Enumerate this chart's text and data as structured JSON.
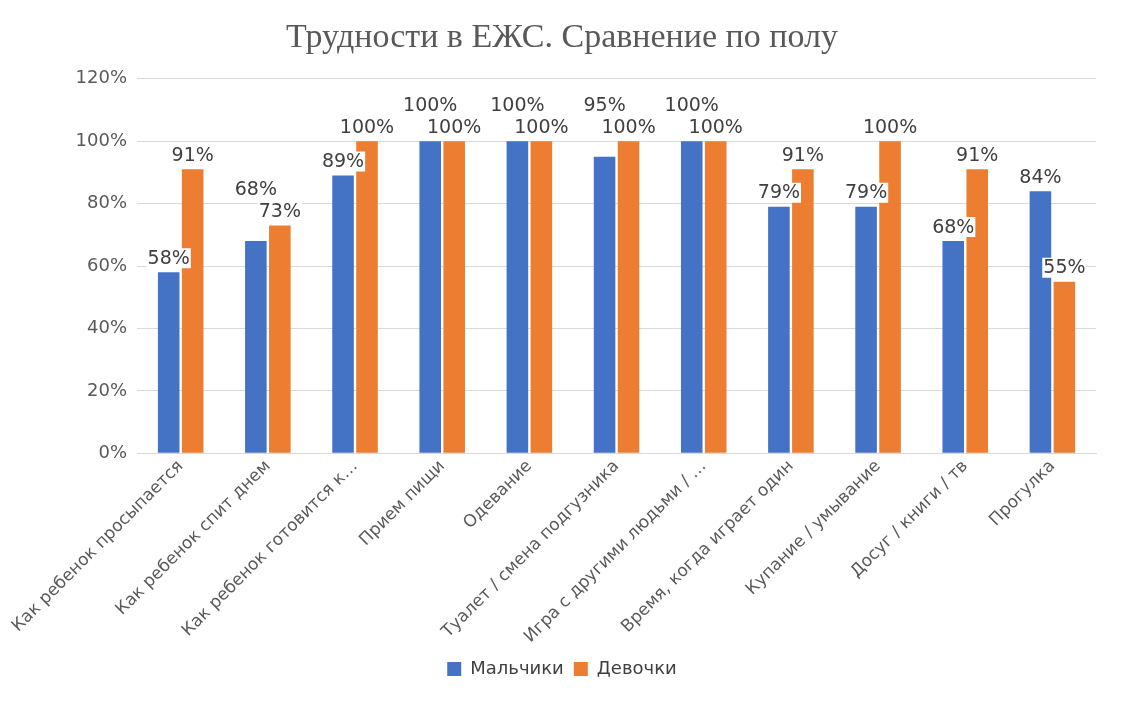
{
  "chart_data": {
    "type": "bar",
    "title": "Трудности в ЕЖС. Сравнение по полу",
    "categories": [
      "Как ребенок просыпается",
      "Как ребенок спит днем",
      "Как ребенок готовится к…",
      "Прием пищи",
      "Одевание",
      "Туалет / смена подгузника",
      "Игра с другими людьми / …",
      "Время, когда играет один",
      "Купание / умывание",
      "Досуг / книги / тв",
      "Прогулка"
    ],
    "series": [
      {
        "name": "Мальчики",
        "color": "#4472c4",
        "values": [
          58,
          68,
          89,
          100,
          100,
          95,
          100,
          79,
          79,
          68,
          84
        ],
        "value_labels": [
          "58%",
          "68%",
          "89%",
          "100%",
          "100%",
          "95%",
          "100%",
          "79%",
          "79%",
          "68%",
          "84%"
        ]
      },
      {
        "name": "Девочки",
        "color": "#ed7d31",
        "values": [
          91,
          73,
          100,
          100,
          100,
          100,
          100,
          91,
          100,
          91,
          55
        ],
        "value_labels": [
          "91%",
          "73%",
          "100%",
          "100%",
          "100%",
          "100%",
          "100%",
          "91%",
          "100%",
          "91%",
          "55%"
        ]
      }
    ],
    "ylim": [
      0,
      120
    ],
    "yticks": [
      {
        "value": 0,
        "label": "0%"
      },
      {
        "value": 20,
        "label": "20%"
      },
      {
        "value": 40,
        "label": "40%"
      },
      {
        "value": 60,
        "label": "60%"
      },
      {
        "value": 80,
        "label": "80%"
      },
      {
        "value": 100,
        "label": "100%"
      },
      {
        "value": 120,
        "label": "120%"
      }
    ],
    "grid": "y",
    "legend": "bottom"
  }
}
